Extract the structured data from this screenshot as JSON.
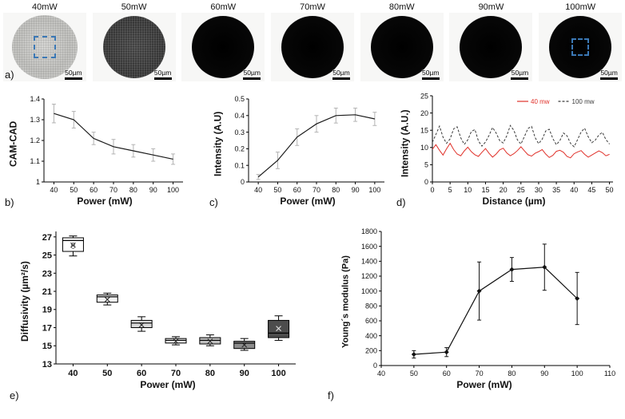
{
  "panel_labels": {
    "a": "a)",
    "b": "b)",
    "c": "c)",
    "d": "d)",
    "e": "e)",
    "f": "f)"
  },
  "microscopy": {
    "scale_bar_label": "50µm",
    "dashed_box_color": "#3b78b5",
    "images": [
      {
        "power_label": "40mW",
        "tone": "light",
        "dashed_box": true,
        "dashed_box_size": 28
      },
      {
        "power_label": "50mW",
        "tone": "medium",
        "dashed_box": false,
        "dashed_box_size": 0
      },
      {
        "power_label": "60mW",
        "tone": "dark",
        "dashed_box": false,
        "dashed_box_size": 0
      },
      {
        "power_label": "70mW",
        "tone": "dark",
        "dashed_box": false,
        "dashed_box_size": 0
      },
      {
        "power_label": "80mW",
        "tone": "dark",
        "dashed_box": false,
        "dashed_box_size": 0
      },
      {
        "power_label": "90mW",
        "tone": "dark",
        "dashed_box": false,
        "dashed_box_size": 0
      },
      {
        "power_label": "100mW",
        "tone": "dark",
        "dashed_box": true,
        "dashed_box_size": 22
      }
    ]
  },
  "chart_data": [
    {
      "id": "chart-b",
      "type": "line",
      "xlabel": "Power (mW)",
      "ylabel": "CAM-CAD",
      "x": [
        40,
        50,
        60,
        70,
        80,
        90,
        100
      ],
      "series": [
        {
          "name": "CAM-CAD",
          "color": "#1a1a1a",
          "values": [
            1.33,
            1.3,
            1.21,
            1.17,
            1.15,
            1.13,
            1.11
          ],
          "errors": [
            0.045,
            0.04,
            0.03,
            0.035,
            0.03,
            0.03,
            0.025
          ]
        }
      ],
      "xlim": [
        35,
        105
      ],
      "ylim": [
        1,
        1.4
      ],
      "xticks": [
        40,
        50,
        60,
        70,
        80,
        90,
        100
      ],
      "yticks": [
        1,
        1.1,
        1.2,
        1.3,
        1.4
      ],
      "ytick_labels": [
        "1",
        "1.1",
        "1.2",
        "1.3",
        "1.4"
      ],
      "error_color": "#b3b3b3",
      "grid": false,
      "legend_position": "none"
    },
    {
      "id": "chart-c",
      "type": "line",
      "xlabel": "Power (mW)",
      "ylabel": "Intensity (A.U)",
      "x": [
        40,
        50,
        60,
        70,
        80,
        90,
        100
      ],
      "series": [
        {
          "name": "Intensity",
          "color": "#1a1a1a",
          "values": [
            0.03,
            0.13,
            0.27,
            0.35,
            0.4,
            0.405,
            0.38
          ],
          "errors": [
            0.015,
            0.05,
            0.05,
            0.05,
            0.045,
            0.04,
            0.04
          ]
        }
      ],
      "xlim": [
        35,
        105
      ],
      "ylim": [
        0,
        0.5
      ],
      "xticks": [
        40,
        50,
        60,
        70,
        80,
        90,
        100
      ],
      "yticks": [
        0,
        0.1,
        0.2,
        0.3,
        0.4,
        0.5
      ],
      "ytick_labels": [
        "0",
        "0.1",
        "0.2",
        "0.3",
        "0.4",
        "0.5"
      ],
      "error_color": "#b3b3b3",
      "grid": false,
      "legend_position": "none"
    },
    {
      "id": "chart-d",
      "type": "line",
      "xlabel": "Distance (µm)",
      "ylabel": "Intensity (A.U.)",
      "x_range": [
        0,
        50
      ],
      "series": [
        {
          "name": "40 mw",
          "color": "#e0312a",
          "dash": "none",
          "width": 1,
          "values": [
            9.5,
            10.8,
            9.2,
            7.8,
            9.6,
            11.2,
            9.4,
            8.1,
            7.6,
            9.0,
            10.1,
            8.8,
            7.9,
            7.4,
            8.6,
            9.7,
            8.3,
            7.2,
            8.1,
            9.3,
            9.8,
            8.4,
            7.6,
            8.2,
            9.1,
            10.2,
            9.0,
            7.9,
            7.5,
            8.3,
            8.8,
            9.4,
            8.1,
            7.1,
            7.7,
            8.9,
            9.2,
            8.6,
            7.4,
            7.0,
            8.2,
            8.7,
            9.1,
            8.0,
            7.2,
            7.8,
            8.4,
            9.0,
            8.5,
            7.6,
            8.0
          ]
        },
        {
          "name": "100 mw",
          "color": "#3a3a3a",
          "dash": "3,2",
          "width": 1,
          "values": [
            11.5,
            13.8,
            16.2,
            13.0,
            11.2,
            12.5,
            15.4,
            16.0,
            12.8,
            10.9,
            12.2,
            14.6,
            15.2,
            11.9,
            10.4,
            11.6,
            13.5,
            15.8,
            14.2,
            12.0,
            11.3,
            13.4,
            16.4,
            15.0,
            12.2,
            11.0,
            13.2,
            15.5,
            16.1,
            12.9,
            11.1,
            12.4,
            14.8,
            15.3,
            12.6,
            10.8,
            12.0,
            14.2,
            13.4,
            11.2,
            10.2,
            12.3,
            14.5,
            15.6,
            13.1,
            11.4,
            12.1,
            13.6,
            14.4,
            12.3,
            11.0
          ]
        }
      ],
      "xlim": [
        0,
        51
      ],
      "ylim": [
        0,
        25
      ],
      "xticks": [
        0,
        5,
        10,
        15,
        20,
        25,
        30,
        35,
        40,
        45,
        50
      ],
      "yticks": [
        0,
        5,
        10,
        15,
        20,
        25
      ],
      "show_legend": true,
      "legend_position": "top-right",
      "grid": false
    },
    {
      "id": "chart-e",
      "type": "box",
      "xlabel": "Power (mW)",
      "ylabel": "Diffusivity (µm²/s)",
      "categories": [
        "40",
        "50",
        "60",
        "70",
        "80",
        "90",
        "100"
      ],
      "boxes": [
        {
          "low": 24.9,
          "q1": 25.4,
          "median": 26.6,
          "q3": 26.9,
          "high": 27.1,
          "mean": 26.1,
          "outliers": [
            25.9,
            26.15
          ],
          "fill": "#ffffff"
        },
        {
          "low": 19.5,
          "q1": 19.8,
          "median": 20.4,
          "q3": 20.6,
          "high": 20.8,
          "mean": 20.1,
          "outliers": [],
          "fill": "#f2f2f2"
        },
        {
          "low": 16.6,
          "q1": 17.0,
          "median": 17.5,
          "q3": 17.8,
          "high": 18.2,
          "mean": 17.3,
          "outliers": [],
          "fill": "#d9d9d9"
        },
        {
          "low": 15.1,
          "q1": 15.3,
          "median": 15.6,
          "q3": 15.8,
          "high": 16.0,
          "mean": 15.5,
          "outliers": [],
          "fill": "#e6e6e6"
        },
        {
          "low": 15.0,
          "q1": 15.2,
          "median": 15.6,
          "q3": 15.9,
          "high": 16.2,
          "mean": 15.5,
          "outliers": [],
          "fill": "#bfbfbf"
        },
        {
          "low": 14.5,
          "q1": 14.7,
          "median": 15.3,
          "q3": 15.5,
          "high": 15.8,
          "mean": 15.1,
          "outliers": [],
          "fill": "#8c8c8c"
        },
        {
          "low": 15.6,
          "q1": 15.9,
          "median": 16.4,
          "q3": 17.8,
          "high": 18.3,
          "mean": 16.9,
          "outliers": [],
          "fill": "#4d4d4d"
        }
      ],
      "ylim": [
        13,
        27.6
      ],
      "yticks": [
        13,
        15,
        17,
        19,
        21,
        23,
        25,
        27
      ],
      "tick_size": 11,
      "tick_bold": true,
      "grid": false
    },
    {
      "id": "chart-f",
      "type": "line",
      "xlabel": "Power (mW)",
      "ylabel": "Young´s modulus (Pa)",
      "x": [
        50,
        60,
        70,
        80,
        90,
        100
      ],
      "series": [
        {
          "name": "Young's modulus",
          "color": "#111111",
          "marker": "diamond",
          "values": [
            150,
            180,
            1000,
            1290,
            1320,
            900
          ],
          "errors": [
            50,
            60,
            390,
            160,
            310,
            350
          ]
        }
      ],
      "xlim": [
        40,
        110
      ],
      "ylim": [
        0,
        1800
      ],
      "xticks": [
        40,
        50,
        60,
        70,
        80,
        90,
        100,
        110
      ],
      "yticks": [
        0,
        200,
        400,
        600,
        800,
        1000,
        1200,
        1400,
        1600,
        1800
      ],
      "grid": false,
      "legend_position": "none"
    }
  ]
}
